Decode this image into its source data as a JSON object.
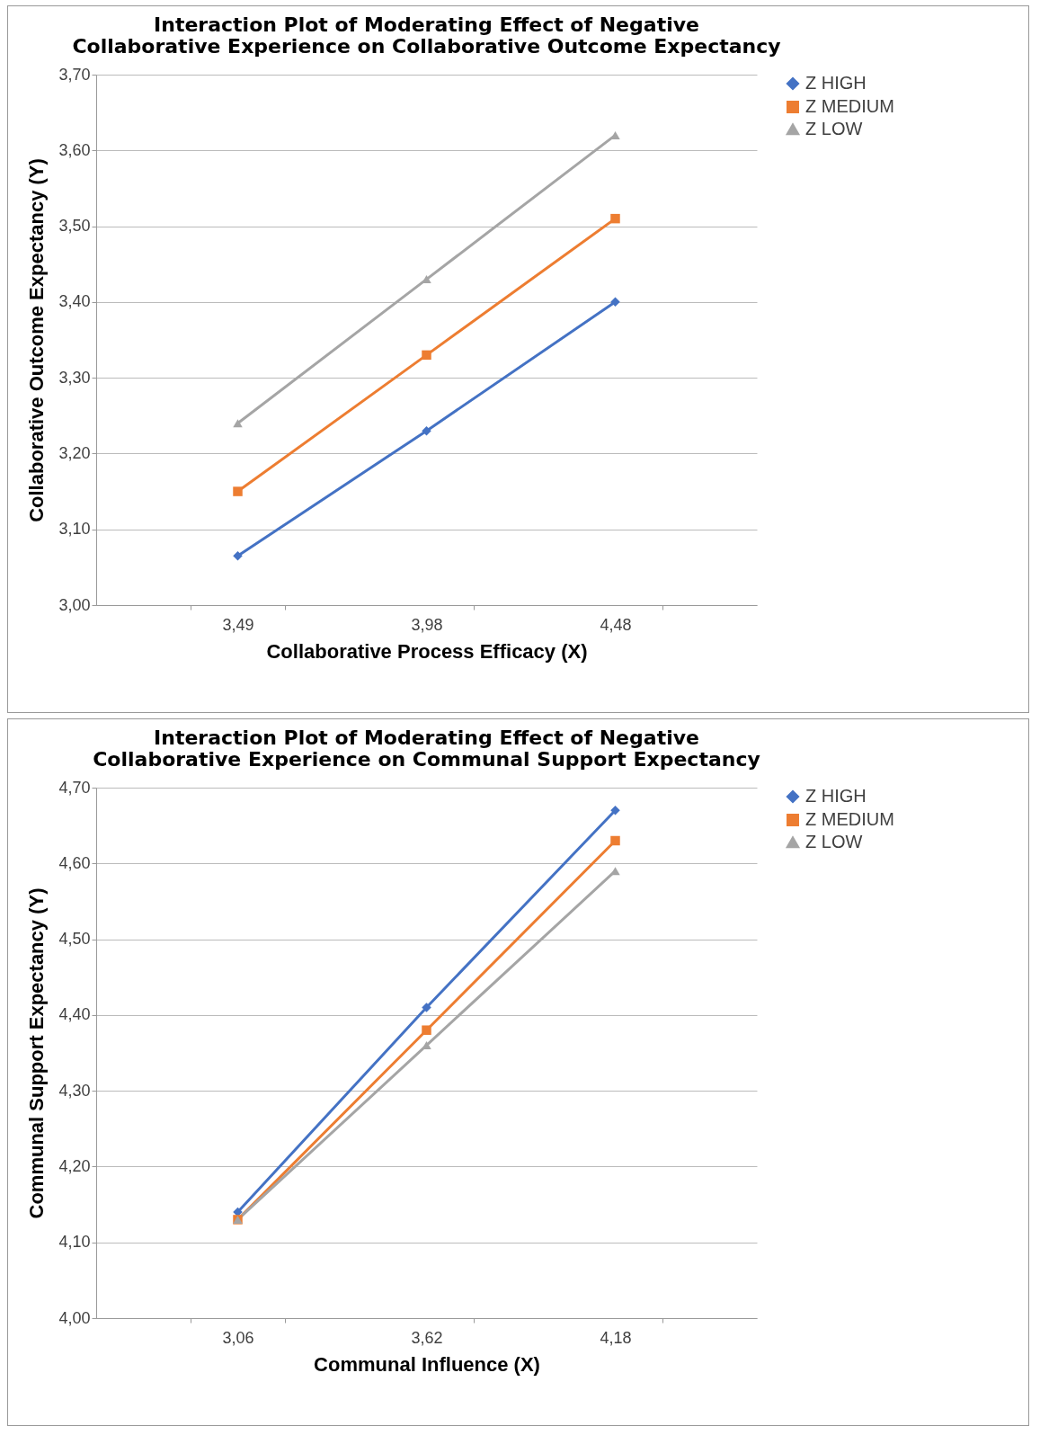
{
  "chart_data": [
    {
      "type": "line",
      "title": "Interaction Plot of Moderating Effect of Negative Collaborative Experience on Collaborative Outcome Expectancy",
      "xlabel": "Collaborative Process Efficacy (X)",
      "ylabel": "Collaborative Outcome Expectancy (Y)",
      "categories": [
        "3,49",
        "3,98",
        "4,48"
      ],
      "series": [
        {
          "name": "Z HIGH",
          "color": "#4472c4",
          "marker": "diamond",
          "values": [
            3.065,
            3.23,
            3.4
          ]
        },
        {
          "name": "Z MEDIUM",
          "color": "#ed7d31",
          "marker": "square",
          "values": [
            3.15,
            3.33,
            3.51
          ]
        },
        {
          "name": "Z LOW",
          "color": "#a5a5a5",
          "marker": "triangle",
          "values": [
            3.24,
            3.43,
            3.62
          ]
        }
      ],
      "ylim": [
        3.0,
        3.7
      ],
      "yticks": [
        {
          "value": 3.0,
          "label": "3,00"
        },
        {
          "value": 3.1,
          "label": "3,10"
        },
        {
          "value": 3.2,
          "label": "3,20"
        },
        {
          "value": 3.3,
          "label": "3,30"
        },
        {
          "value": 3.4,
          "label": "3,40"
        },
        {
          "value": 3.5,
          "label": "3,50"
        },
        {
          "value": 3.6,
          "label": "3,60"
        },
        {
          "value": 3.7,
          "label": "3,70"
        }
      ],
      "grid": "y",
      "legend": "right"
    },
    {
      "type": "line",
      "title": "Interaction Plot of Moderating Effect of Negative Collaborative Experience on Communal Support Expectancy",
      "xlabel": "Communal Influence (X)",
      "ylabel": "Communal Support  Expectancy (Y)",
      "categories": [
        "3,06",
        "3,62",
        "4,18"
      ],
      "series": [
        {
          "name": "Z HIGH",
          "color": "#4472c4",
          "marker": "diamond",
          "values": [
            4.14,
            4.41,
            4.67
          ]
        },
        {
          "name": "Z MEDIUM",
          "color": "#ed7d31",
          "marker": "square",
          "values": [
            4.13,
            4.38,
            4.63
          ]
        },
        {
          "name": "Z LOW",
          "color": "#a5a5a5",
          "marker": "triangle",
          "values": [
            4.13,
            4.36,
            4.59
          ]
        }
      ],
      "ylim": [
        4.0,
        4.7
      ],
      "yticks": [
        {
          "value": 4.0,
          "label": "4,00"
        },
        {
          "value": 4.1,
          "label": "4,10"
        },
        {
          "value": 4.2,
          "label": "4,20"
        },
        {
          "value": 4.3,
          "label": "4,30"
        },
        {
          "value": 4.4,
          "label": "4,40"
        },
        {
          "value": 4.5,
          "label": "4,50"
        },
        {
          "value": 4.6,
          "label": "4,60"
        },
        {
          "value": 4.7,
          "label": "4,70"
        }
      ],
      "grid": "y",
      "legend": "right"
    }
  ]
}
